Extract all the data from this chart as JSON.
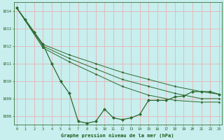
{
  "background_color": "#c8eeee",
  "grid_color": "#e8b4b4",
  "line_color": "#2d6a2d",
  "marker_color": "#2d6a2d",
  "xlabel": "Graphe pression niveau de la mer (hPa)",
  "xlabel_color": "#1a5c1a",
  "tick_color": "#1a5c1a",
  "ylim": [
    1007.5,
    1014.5
  ],
  "yticks": [
    1008,
    1009,
    1010,
    1011,
    1012,
    1013,
    1014
  ],
  "xticks": [
    0,
    1,
    2,
    3,
    4,
    5,
    6,
    7,
    8,
    9,
    10,
    11,
    12,
    13,
    14,
    15,
    16,
    17,
    18,
    19,
    20,
    21,
    22,
    23
  ],
  "series_main": {
    "x": [
      0,
      1,
      2,
      3,
      4,
      5,
      6,
      7,
      8,
      9,
      10,
      11,
      12,
      13,
      14,
      15,
      16,
      17,
      18,
      19,
      20,
      21,
      22,
      23
    ],
    "y": [
      1014.2,
      1013.5,
      1012.8,
      1012.1,
      1011.0,
      1010.0,
      1009.3,
      1007.7,
      1007.6,
      1007.7,
      1008.4,
      1007.9,
      1007.8,
      1007.9,
      1008.1,
      1008.9,
      1008.9,
      1008.9,
      1009.1,
      1009.15,
      1009.4,
      1009.4,
      1009.4,
      1009.25
    ]
  },
  "series_smooth": [
    {
      "x": [
        0,
        3,
        6,
        9,
        12,
        15,
        18,
        21,
        23
      ],
      "y": [
        1014.2,
        1012.1,
        1011.5,
        1011.0,
        1010.5,
        1010.1,
        1009.7,
        1009.4,
        1009.25
      ]
    },
    {
      "x": [
        0,
        3,
        6,
        9,
        12,
        15,
        18,
        21,
        23
      ],
      "y": [
        1014.2,
        1012.0,
        1011.3,
        1010.7,
        1010.1,
        1009.7,
        1009.3,
        1009.0,
        1009.0
      ]
    },
    {
      "x": [
        0,
        3,
        6,
        9,
        12,
        15,
        18,
        21,
        23
      ],
      "y": [
        1014.2,
        1011.9,
        1011.1,
        1010.4,
        1009.7,
        1009.2,
        1008.9,
        1008.8,
        1008.8
      ]
    }
  ]
}
